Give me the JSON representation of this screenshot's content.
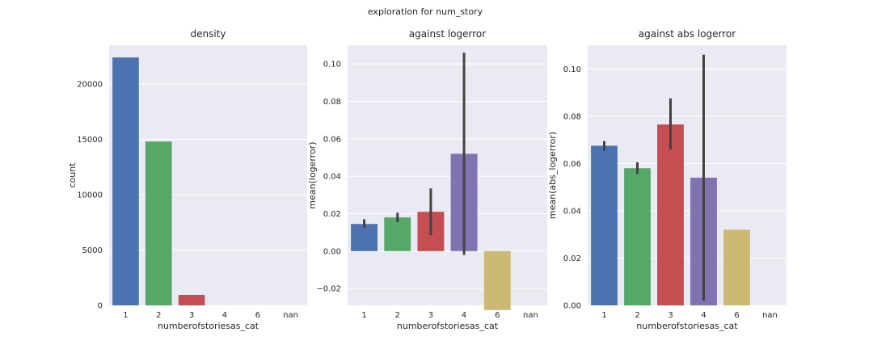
{
  "figure": {
    "suptitle": "exploration for num_story"
  },
  "palette": [
    "#4c72b0",
    "#55a868",
    "#c44e52",
    "#8172b2",
    "#ccb974",
    "#64b5cd"
  ],
  "chart_data": [
    {
      "type": "bar",
      "title": "density",
      "xlabel": "numberofstoriesas_cat",
      "ylabel": "count",
      "categories": [
        "1",
        "2",
        "3",
        "4",
        "6",
        "nan"
      ],
      "values": [
        22400,
        14800,
        950,
        0,
        0,
        0
      ],
      "ylim": [
        0,
        23500
      ],
      "yticks": [
        0,
        5000,
        10000,
        15000,
        20000
      ],
      "ytick_labels": [
        "0",
        "5000",
        "10000",
        "15000",
        "20000"
      ],
      "grid": true
    },
    {
      "type": "bar",
      "title": "against logerror",
      "xlabel": "numberofstoriesas_cat",
      "ylabel": "mean(logerror)",
      "categories": [
        "1",
        "2",
        "3",
        "4",
        "6",
        "nan"
      ],
      "values": [
        0.0145,
        0.018,
        0.021,
        0.052,
        -0.0315,
        null
      ],
      "error_low": [
        0.0125,
        0.0155,
        0.0085,
        -0.002,
        null,
        null
      ],
      "error_high": [
        0.017,
        0.0205,
        0.0335,
        0.106,
        null,
        null
      ],
      "ylim": [
        -0.029,
        0.11
      ],
      "yticks": [
        -0.02,
        0.0,
        0.02,
        0.04,
        0.06,
        0.08,
        0.1
      ],
      "ytick_labels": [
        "−0.02",
        "0.00",
        "0.02",
        "0.04",
        "0.06",
        "0.08",
        "0.10"
      ],
      "grid": true
    },
    {
      "type": "bar",
      "title": "against abs logerror",
      "xlabel": "numberofstoriesas_cat",
      "ylabel": "mean(abs_logerror)",
      "categories": [
        "1",
        "2",
        "3",
        "4",
        "6",
        "nan"
      ],
      "values": [
        0.0675,
        0.058,
        0.0765,
        0.054,
        0.032,
        null
      ],
      "error_low": [
        0.0655,
        0.0555,
        0.066,
        0.002,
        null,
        null
      ],
      "error_high": [
        0.0695,
        0.0605,
        0.0875,
        0.106,
        null,
        null
      ],
      "ylim": [
        0,
        0.11
      ],
      "yticks": [
        0.0,
        0.02,
        0.04,
        0.06,
        0.08,
        0.1
      ],
      "ytick_labels": [
        "0.00",
        "0.02",
        "0.04",
        "0.06",
        "0.08",
        "0.10"
      ],
      "grid": true
    }
  ]
}
